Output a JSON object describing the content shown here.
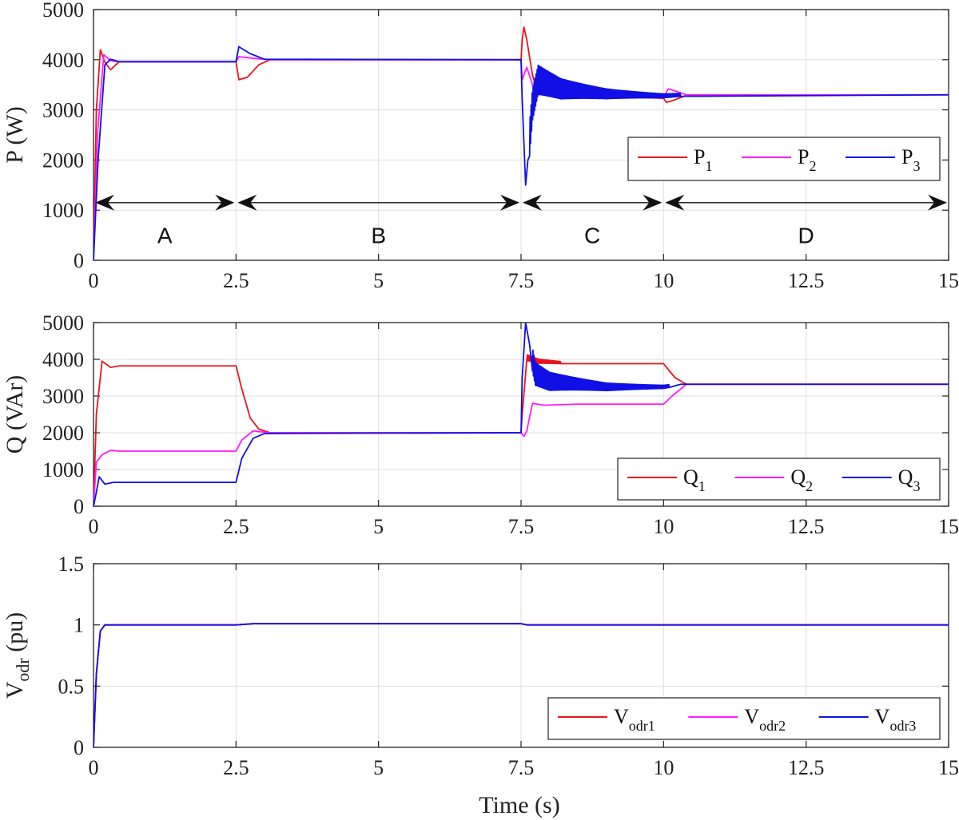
{
  "figure": {
    "xlabel": "Time (s)"
  },
  "colors": {
    "series1": "#e8141b",
    "series2": "#ff1cff",
    "series3": "#1010e6"
  },
  "chart_data": [
    {
      "type": "line",
      "ylabel": "P (W)",
      "xlim": [
        0,
        15
      ],
      "ylim": [
        0,
        5000
      ],
      "xticks": [
        "0",
        "2.5",
        "5",
        "7.5",
        "10",
        "12.5",
        "15"
      ],
      "yticks": [
        "0",
        "1000",
        "2000",
        "3000",
        "4000",
        "5000"
      ],
      "grid": true,
      "legend": {
        "position": "right",
        "labels": [
          {
            "base": "P",
            "sub": "1"
          },
          {
            "base": "P",
            "sub": "2"
          },
          {
            "base": "P",
            "sub": "3"
          }
        ]
      },
      "regions": [
        {
          "label": "A",
          "from": 0,
          "to": 2.5
        },
        {
          "label": "B",
          "from": 2.5,
          "to": 7.5
        },
        {
          "label": "C",
          "from": 7.5,
          "to": 10
        },
        {
          "label": "D",
          "from": 10,
          "to": 15
        }
      ],
      "region_arrow_y": 1150,
      "region_label_y": 500,
      "series": [
        {
          "name": "P1",
          "points": [
            [
              0,
              0
            ],
            [
              0.05,
              3000
            ],
            [
              0.12,
              4200
            ],
            [
              0.2,
              3950
            ],
            [
              0.3,
              3800
            ],
            [
              0.45,
              3960
            ],
            [
              2.5,
              3960
            ],
            [
              2.55,
              3600
            ],
            [
              2.7,
              3650
            ],
            [
              2.9,
              3900
            ],
            [
              3.1,
              4000
            ],
            [
              7.5,
              4000
            ],
            [
              7.52,
              4400
            ],
            [
              7.55,
              4650
            ],
            [
              7.6,
              4400
            ],
            [
              7.7,
              3700
            ],
            [
              7.8,
              3300
            ],
            [
              8.0,
              3400
            ],
            [
              8.5,
              3350
            ],
            [
              9.5,
              3250
            ],
            [
              10,
              3230
            ],
            [
              10.05,
              3150
            ],
            [
              10.15,
              3180
            ],
            [
              10.4,
              3290
            ],
            [
              15,
              3300
            ]
          ]
        },
        {
          "name": "P2",
          "points": [
            [
              0,
              0
            ],
            [
              0.07,
              2500
            ],
            [
              0.18,
              4100
            ],
            [
              0.3,
              3980
            ],
            [
              0.45,
              3960
            ],
            [
              2.5,
              3960
            ],
            [
              2.55,
              4060
            ],
            [
              2.8,
              4030
            ],
            [
              3.1,
              4000
            ],
            [
              7.5,
              4000
            ],
            [
              7.52,
              3600
            ],
            [
              7.6,
              3850
            ],
            [
              7.7,
              3500
            ],
            [
              7.8,
              3300
            ],
            [
              8.0,
              3400
            ],
            [
              8.5,
              3350
            ],
            [
              9.5,
              3250
            ],
            [
              10,
              3240
            ],
            [
              10.08,
              3420
            ],
            [
              10.2,
              3380
            ],
            [
              10.4,
              3300
            ],
            [
              15,
              3300
            ]
          ]
        },
        {
          "name": "P3",
          "points": [
            [
              0,
              0
            ],
            [
              0.08,
              2000
            ],
            [
              0.2,
              3900
            ],
            [
              0.3,
              4010
            ],
            [
              0.45,
              3960
            ],
            [
              2.5,
              3960
            ],
            [
              2.55,
              4260
            ],
            [
              2.75,
              4120
            ],
            [
              3.0,
              4010
            ],
            [
              7.5,
              4000
            ],
            [
              7.52,
              3200
            ],
            [
              7.58,
              1500
            ],
            [
              7.62,
              2000
            ],
            [
              7.7,
              3100
            ],
            [
              7.8,
              3600
            ],
            [
              8.2,
              3420
            ],
            [
              9.0,
              3320
            ],
            [
              10,
              3280
            ],
            [
              10.3,
              3300
            ],
            [
              15,
              3300
            ]
          ],
          "oscillation": {
            "from": 7.65,
            "to": 10.3,
            "amplitude": 330,
            "decay_to": 30,
            "cycles": 150
          }
        }
      ]
    },
    {
      "type": "line",
      "ylabel": "Q (VAr)",
      "xlim": [
        0,
        15
      ],
      "ylim": [
        0,
        5000
      ],
      "xticks": [
        "0",
        "2.5",
        "5",
        "7.5",
        "10",
        "12.5",
        "15"
      ],
      "yticks": [
        "0",
        "1000",
        "2000",
        "3000",
        "4000",
        "5000"
      ],
      "grid": true,
      "legend": {
        "position": "right",
        "labels": [
          {
            "base": "Q",
            "sub": "1"
          },
          {
            "base": "Q",
            "sub": "2"
          },
          {
            "base": "Q",
            "sub": "3"
          }
        ]
      },
      "series": [
        {
          "name": "Q1",
          "points": [
            [
              0,
              0
            ],
            [
              0.05,
              2500
            ],
            [
              0.15,
              3950
            ],
            [
              0.3,
              3780
            ],
            [
              0.45,
              3820
            ],
            [
              2.5,
              3820
            ],
            [
              2.6,
              3200
            ],
            [
              2.75,
              2400
            ],
            [
              2.9,
              2100
            ],
            [
              3.1,
              2000
            ],
            [
              7.5,
              2000
            ],
            [
              7.52,
              2500
            ],
            [
              7.6,
              4050
            ],
            [
              7.8,
              3950
            ],
            [
              8.5,
              3880
            ],
            [
              10,
              3880
            ],
            [
              10.2,
              3500
            ],
            [
              10.4,
              3320
            ],
            [
              15,
              3320
            ]
          ],
          "oscillation": {
            "from": 7.6,
            "to": 8.2,
            "amplitude": 80,
            "decay_to": 30,
            "cycles": 30
          }
        },
        {
          "name": "Q2",
          "points": [
            [
              0,
              0
            ],
            [
              0.05,
              1200
            ],
            [
              0.15,
              1400
            ],
            [
              0.3,
              1520
            ],
            [
              0.45,
              1500
            ],
            [
              2.5,
              1500
            ],
            [
              2.6,
              1800
            ],
            [
              2.8,
              2050
            ],
            [
              3.1,
              2000
            ],
            [
              7.5,
              2000
            ],
            [
              7.55,
              1900
            ],
            [
              7.6,
              2050
            ],
            [
              7.7,
              2800
            ],
            [
              7.9,
              2750
            ],
            [
              8.5,
              2780
            ],
            [
              10,
              2780
            ],
            [
              10.15,
              3000
            ],
            [
              10.4,
              3320
            ],
            [
              15,
              3320
            ]
          ]
        },
        {
          "name": "Q3",
          "points": [
            [
              0,
              0
            ],
            [
              0.04,
              300
            ],
            [
              0.1,
              800
            ],
            [
              0.2,
              600
            ],
            [
              0.35,
              650
            ],
            [
              2.5,
              650
            ],
            [
              2.6,
              1300
            ],
            [
              2.8,
              1850
            ],
            [
              3.0,
              1980
            ],
            [
              7.5,
              2000
            ],
            [
              7.52,
              3500
            ],
            [
              7.58,
              5000
            ],
            [
              7.65,
              4400
            ],
            [
              7.75,
              3600
            ],
            [
              8.0,
              3400
            ],
            [
              9.0,
              3250
            ],
            [
              10,
              3250
            ],
            [
              10.3,
              3320
            ],
            [
              15,
              3320
            ]
          ],
          "oscillation": {
            "from": 7.7,
            "to": 10.1,
            "amplitude": 320,
            "decay_to": 40,
            "cycles": 140
          }
        }
      ]
    },
    {
      "type": "line",
      "ylabel": "V_odr (pu)",
      "xlim": [
        0,
        15
      ],
      "ylim": [
        0,
        1.5
      ],
      "xticks": [
        "0",
        "2.5",
        "5",
        "7.5",
        "10",
        "12.5",
        "15"
      ],
      "yticks": [
        "0",
        "0.5",
        "1",
        "1.5"
      ],
      "grid": true,
      "legend": {
        "position": "bottom-right",
        "labels": [
          {
            "base": "V",
            "sub": "odr1"
          },
          {
            "base": "V",
            "sub": "odr2"
          },
          {
            "base": "V",
            "sub": "odr3"
          }
        ]
      },
      "series": [
        {
          "name": "Vodr1",
          "points": [
            [
              0,
              0
            ],
            [
              0.05,
              0.6
            ],
            [
              0.12,
              0.95
            ],
            [
              0.2,
              1.0
            ],
            [
              2.5,
              1.0
            ],
            [
              2.8,
              1.01
            ],
            [
              7.5,
              1.01
            ],
            [
              7.6,
              1.0
            ],
            [
              15,
              1.0
            ]
          ]
        },
        {
          "name": "Vodr2",
          "points": [
            [
              0,
              0
            ],
            [
              0.05,
              0.6
            ],
            [
              0.12,
              0.95
            ],
            [
              0.2,
              1.0
            ],
            [
              2.5,
              1.0
            ],
            [
              2.8,
              1.01
            ],
            [
              7.5,
              1.01
            ],
            [
              7.6,
              1.0
            ],
            [
              15,
              1.0
            ]
          ]
        },
        {
          "name": "Vodr3",
          "points": [
            [
              0,
              0
            ],
            [
              0.05,
              0.6
            ],
            [
              0.12,
              0.95
            ],
            [
              0.2,
              1.0
            ],
            [
              2.5,
              1.0
            ],
            [
              2.8,
              1.01
            ],
            [
              7.5,
              1.01
            ],
            [
              7.6,
              1.0
            ],
            [
              15,
              1.0
            ]
          ]
        }
      ]
    }
  ]
}
